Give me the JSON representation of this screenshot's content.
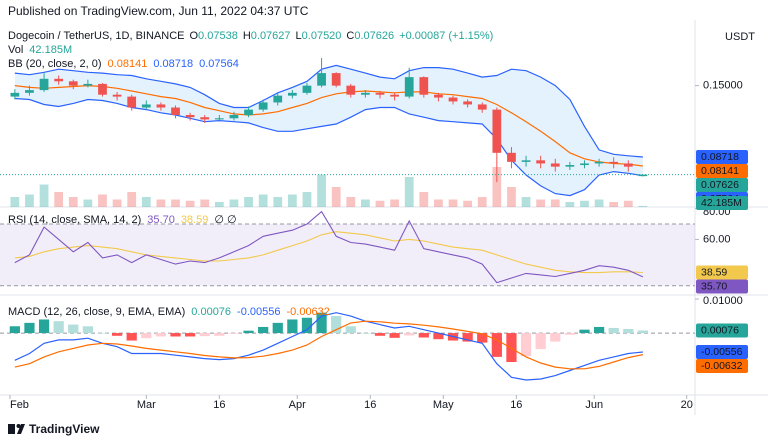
{
  "header": "Published on TradingView.com, Jun 11, 2022 04:37 UTC",
  "footer": "TradingView",
  "chart_data": [
    {
      "type": "candlestick",
      "title": "Dogecoin / TetherUS, 1D, BINANCE",
      "ohlc_names": [
        "O",
        "H",
        "L",
        "C"
      ],
      "change": "+0.00087 (+1.15%)",
      "up_color": "#26a69a",
      "down_color": "#ef5350",
      "y_label": "USDT",
      "log_scale": true,
      "ylim": [
        0.0596,
        0.229
      ],
      "yticks": [
        {
          "value": 0.15,
          "label": "0.15000"
        }
      ],
      "xlim": [
        -2.05,
        140.7
      ],
      "x": [
        1,
        4,
        7,
        10,
        13,
        16,
        19,
        22,
        25,
        28,
        31,
        34,
        37,
        40,
        43,
        46,
        49,
        52,
        55,
        58,
        61,
        64,
        67,
        70,
        73,
        76,
        79,
        82,
        85,
        88,
        91,
        94,
        97,
        100,
        103,
        106,
        109,
        112,
        115,
        118,
        121,
        124,
        127,
        130
      ],
      "open": [
        0.138,
        0.142,
        0.145,
        0.158,
        0.155,
        0.15,
        0.152,
        0.14,
        0.138,
        0.127,
        0.13,
        0.127,
        0.12,
        0.118,
        0.116,
        0.117,
        0.12,
        0.125,
        0.132,
        0.139,
        0.142,
        0.15,
        0.165,
        0.15,
        0.14,
        0.142,
        0.14,
        0.138,
        0.16,
        0.14,
        0.137,
        0.133,
        0.13,
        0.125,
        0.09,
        0.084,
        0.085,
        0.083,
        0.081,
        0.082,
        0.083,
        0.084,
        0.083,
        0.07538
      ],
      "high": [
        0.146,
        0.15,
        0.165,
        0.162,
        0.157,
        0.157,
        0.153,
        0.143,
        0.14,
        0.134,
        0.132,
        0.129,
        0.122,
        0.12,
        0.12,
        0.123,
        0.128,
        0.135,
        0.142,
        0.145,
        0.153,
        0.185,
        0.166,
        0.152,
        0.145,
        0.144,
        0.142,
        0.172,
        0.161,
        0.142,
        0.139,
        0.135,
        0.132,
        0.127,
        0.094,
        0.088,
        0.088,
        0.086,
        0.084,
        0.085,
        0.086,
        0.087,
        0.085,
        0.07627
      ],
      "low": [
        0.135,
        0.139,
        0.143,
        0.151,
        0.146,
        0.148,
        0.138,
        0.134,
        0.124,
        0.125,
        0.124,
        0.117,
        0.115,
        0.113,
        0.114,
        0.115,
        0.118,
        0.123,
        0.129,
        0.136,
        0.14,
        0.148,
        0.148,
        0.137,
        0.137,
        0.136,
        0.134,
        0.136,
        0.137,
        0.133,
        0.13,
        0.127,
        0.122,
        0.072,
        0.08,
        0.081,
        0.08,
        0.078,
        0.079,
        0.08,
        0.081,
        0.08,
        0.078,
        0.0752
      ],
      "close": [
        0.142,
        0.145,
        0.158,
        0.155,
        0.15,
        0.152,
        0.14,
        0.138,
        0.127,
        0.13,
        0.127,
        0.12,
        0.118,
        0.116,
        0.117,
        0.12,
        0.125,
        0.132,
        0.139,
        0.142,
        0.15,
        0.165,
        0.15,
        0.14,
        0.142,
        0.14,
        0.138,
        0.16,
        0.14,
        0.137,
        0.133,
        0.13,
        0.125,
        0.09,
        0.084,
        0.085,
        0.083,
        0.081,
        0.082,
        0.083,
        0.084,
        0.083,
        0.081,
        0.07626
      ],
      "value_labels": {
        "low": [
          null,
          null,
          null,
          null,
          null,
          null,
          null,
          null,
          null,
          null,
          null,
          null,
          null,
          null,
          null,
          null,
          null,
          null,
          null,
          null,
          null,
          null,
          null,
          null,
          null,
          null,
          null,
          null,
          null,
          null,
          null,
          null,
          null,
          null,
          null,
          null,
          null,
          null,
          null,
          null,
          null,
          null,
          null,
          "0.07520"
        ]
      },
      "volume": {
        "name": "Vol",
        "ylim": [
          0,
          3000000000
        ],
        "values": [
          400000000.0,
          500000000.0,
          900000000.0,
          600000000.0,
          400000000.0,
          300000000.0,
          500000000.0,
          300000000.0,
          600000000.0,
          400000000.0,
          300000000.0,
          300000000.0,
          250000000.0,
          300000000.0,
          200000000.0,
          300000000.0,
          400000000.0,
          500000000.0,
          400000000.0,
          500000000.0,
          600000000.0,
          1300000000.0,
          800000000.0,
          400000000.0,
          300000000.0,
          250000000.0,
          300000000.0,
          1200000000.0,
          600000000.0,
          300000000.0,
          300000000.0,
          250000000.0,
          400000000.0,
          1600000000.0,
          800000000.0,
          400000000.0,
          300000000.0,
          300000000.0,
          200000000.0,
          250000000.0,
          300000000.0,
          200000000.0,
          250000000.0,
          42185000
        ],
        "value_labels": [
          null,
          null,
          null,
          null,
          null,
          null,
          null,
          null,
          null,
          null,
          null,
          null,
          null,
          null,
          null,
          null,
          null,
          null,
          null,
          null,
          null,
          null,
          null,
          null,
          null,
          null,
          null,
          null,
          null,
          null,
          null,
          null,
          null,
          null,
          null,
          null,
          null,
          null,
          null,
          null,
          null,
          null,
          null,
          "42.185M"
        ]
      },
      "bb": {
        "name": "BB (20, close, 2, 0)",
        "fill": "rgba(33,150,243,0.12)",
        "series": [
          {
            "color": "#ff6d00",
            "values": [
              0.15,
              0.148,
              0.147,
              0.148,
              0.149,
              0.15,
              0.149,
              0.147,
              0.144,
              0.141,
              0.138,
              0.136,
              0.132,
              0.127,
              0.124,
              0.121,
              0.12,
              0.121,
              0.123,
              0.127,
              0.131,
              0.137,
              0.141,
              0.143,
              0.144,
              0.143,
              0.142,
              0.143,
              0.143,
              0.141,
              0.14,
              0.138,
              0.136,
              0.13,
              0.122,
              0.114,
              0.106,
              0.098,
              0.09,
              0.086,
              0.084,
              0.083,
              0.0825,
              0.08141
            ]
          },
          {
            "color": "#2962ff",
            "values": [
              0.165,
              0.163,
              0.166,
              0.17,
              0.168,
              0.166,
              0.165,
              0.163,
              0.162,
              0.158,
              0.155,
              0.152,
              0.148,
              0.14,
              0.131,
              0.127,
              0.127,
              0.134,
              0.142,
              0.148,
              0.155,
              0.17,
              0.175,
              0.17,
              0.165,
              0.16,
              0.158,
              0.168,
              0.172,
              0.172,
              0.17,
              0.165,
              0.16,
              0.162,
              0.17,
              0.168,
              0.16,
              0.15,
              0.135,
              0.11,
              0.092,
              0.089,
              0.088,
              0.08718
            ]
          },
          {
            "color": "#2962ff",
            "values": [
              0.136,
              0.135,
              0.13,
              0.128,
              0.131,
              0.135,
              0.134,
              0.131,
              0.127,
              0.125,
              0.122,
              0.12,
              0.117,
              0.114,
              0.115,
              0.114,
              0.113,
              0.109,
              0.106,
              0.106,
              0.108,
              0.11,
              0.112,
              0.118,
              0.125,
              0.127,
              0.127,
              0.121,
              0.118,
              0.115,
              0.114,
              0.113,
              0.112,
              0.1,
              0.085,
              0.076,
              0.07,
              0.066,
              0.065,
              0.068,
              0.076,
              0.078,
              0.077,
              0.07564
            ]
          }
        ]
      }
    },
    {
      "type": "line",
      "title": "RSI (14, close, SMA, 14, 2)",
      "na": "∅ ∅",
      "ylim": [
        24,
        81
      ],
      "yticks": [
        {
          "value": 80,
          "label": "80.00"
        },
        {
          "value": 60,
          "label": "60.00"
        }
      ],
      "bands": [
        30,
        70
      ],
      "band_fill": "rgba(126,87,194,0.1)",
      "series": [
        {
          "color": "#7e57c2",
          "values": [
            45,
            50,
            68,
            60,
            52,
            58,
            48,
            50,
            45,
            50,
            47,
            44,
            46,
            45,
            48,
            52,
            56,
            62,
            64,
            66,
            70,
            78,
            62,
            58,
            57,
            55,
            53,
            72,
            54,
            52,
            50,
            48,
            44,
            32,
            35,
            38,
            37,
            36,
            38,
            40,
            43,
            42,
            40,
            35.7
          ],
          "value_labels": [
            null,
            null,
            null,
            null,
            null,
            null,
            null,
            null,
            null,
            null,
            null,
            null,
            null,
            null,
            null,
            null,
            null,
            null,
            null,
            null,
            null,
            null,
            null,
            null,
            null,
            null,
            null,
            null,
            null,
            null,
            null,
            null,
            null,
            null,
            null,
            null,
            null,
            null,
            null,
            null,
            null,
            null,
            null,
            "35.70"
          ]
        },
        {
          "color": "#f2c94c",
          "values": [
            48,
            49,
            52,
            54,
            55,
            56,
            55,
            54,
            52,
            50,
            49,
            48,
            47,
            46,
            46,
            47,
            48,
            50,
            53,
            56,
            59,
            63,
            65,
            64,
            63,
            61,
            59,
            60,
            59,
            57,
            55,
            54,
            53,
            50,
            47,
            44,
            42,
            40,
            39,
            38.5,
            38.5,
            39,
            39,
            38.59
          ]
        }
      ]
    },
    {
      "type": "macd",
      "title": "MACD (12, 26, close, 9, EMA, EMA)",
      "ylim": [
        -0.0182,
        0.0106
      ],
      "yticks": [
        {
          "value": 0.01,
          "label": "0.01000"
        }
      ],
      "xticks": [
        {
          "value": 0,
          "label": "Feb"
        },
        {
          "value": 28,
          "label": "Mar"
        },
        {
          "value": 43,
          "label": "16"
        },
        {
          "value": 59,
          "label": "Apr"
        },
        {
          "value": 74,
          "label": "16"
        },
        {
          "value": 89,
          "label": "May"
        },
        {
          "value": 104,
          "label": "16"
        },
        {
          "value": 120,
          "label": "Jun"
        },
        {
          "value": 139,
          "label": "20"
        }
      ],
      "histogram": {
        "colors": [
          "#26a69a",
          "#b2dfdb",
          "#ff5252",
          "#ffcdd2"
        ],
        "values": [
          0.002,
          0.003,
          0.004,
          0.0035,
          0.0025,
          0.002,
          0,
          -0.0008,
          -0.0022,
          -0.0015,
          -0.001,
          -0.001,
          -0.001,
          -0.0009,
          -0.0008,
          -0.0002,
          0.0007,
          0.0018,
          0.003,
          0.004,
          0.0045,
          0.006,
          0.005,
          0.002,
          0,
          -0.0008,
          -0.0014,
          -0.0007,
          -0.0013,
          -0.0018,
          -0.0022,
          -0.0025,
          -0.0028,
          -0.007,
          -0.0085,
          -0.0068,
          -0.0047,
          -0.0025,
          -0.0005,
          0.001,
          0.0018,
          0.0015,
          0.0012,
          0.00076
        ]
      },
      "series": [
        {
          "color": "#2962ff",
          "values": [
            -0.008,
            -0.006,
            -0.003,
            -0.002,
            -0.002,
            -0.0015,
            -0.003,
            -0.004,
            -0.006,
            -0.006,
            -0.006,
            -0.0065,
            -0.007,
            -0.0075,
            -0.0078,
            -0.0075,
            -0.0065,
            -0.005,
            -0.003,
            -0.001,
            0.001,
            0.005,
            0.006,
            0.005,
            0.0035,
            0.0025,
            0.0015,
            0.002,
            0.001,
            0,
            -0.001,
            -0.002,
            -0.003,
            -0.009,
            -0.013,
            -0.0138,
            -0.0135,
            -0.0125,
            -0.011,
            -0.0095,
            -0.008,
            -0.007,
            -0.006,
            -0.00556
          ]
        },
        {
          "color": "#ff6d00",
          "values": [
            -0.01,
            -0.009,
            -0.007,
            -0.0055,
            -0.0045,
            -0.0035,
            -0.003,
            -0.0032,
            -0.0038,
            -0.0045,
            -0.005,
            -0.0055,
            -0.006,
            -0.0066,
            -0.007,
            -0.0073,
            -0.0072,
            -0.0068,
            -0.006,
            -0.005,
            -0.0035,
            -0.001,
            0.001,
            0.003,
            0.0035,
            0.0033,
            0.0029,
            0.0027,
            0.0023,
            0.0018,
            0.0012,
            0.0005,
            -0.0002,
            -0.002,
            -0.0045,
            -0.007,
            -0.0088,
            -0.01,
            -0.0105,
            -0.0105,
            -0.0098,
            -0.0085,
            -0.0072,
            -0.00632
          ]
        }
      ]
    }
  ]
}
